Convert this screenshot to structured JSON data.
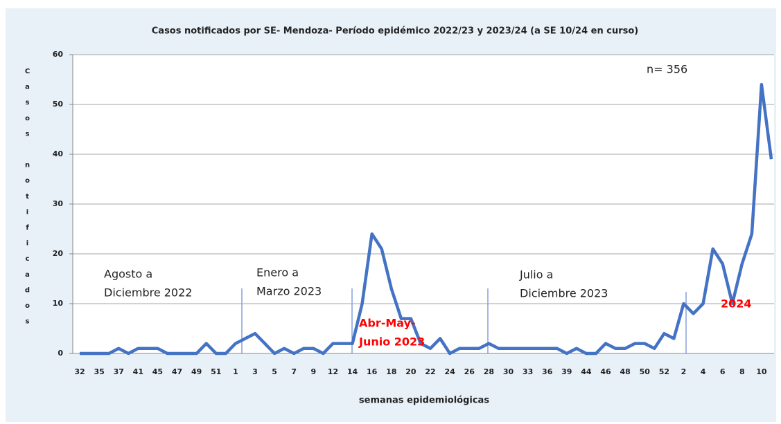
{
  "chart_data": {
    "type": "line",
    "title": "Casos notificados  por SE- Mendoza- Período epidémico 2022/23 y 2023/24 (a SE 10/24 en curso)",
    "ylabel": "Casos notificados",
    "xlabel": "semanas epidemiológicas",
    "categories": [
      "32",
      null,
      "35",
      null,
      "37",
      null,
      "41",
      null,
      "45",
      null,
      "47",
      null,
      "49",
      null,
      "51",
      null,
      "1",
      null,
      "3",
      null,
      "5",
      null,
      "7",
      null,
      "9",
      null,
      "12",
      null,
      "14",
      null,
      "16",
      null,
      "18",
      null,
      "20",
      null,
      "22",
      null,
      "24",
      null,
      "26",
      null,
      "28",
      null,
      "30",
      null,
      "33",
      null,
      "36",
      null,
      "39",
      null,
      "44",
      null,
      "46",
      null,
      "48",
      null,
      "50",
      null,
      "52",
      null,
      "2",
      null,
      "4",
      null,
      "6",
      null,
      "8",
      null,
      "10",
      null
    ],
    "values": [
      0,
      0,
      0,
      0,
      1,
      0,
      1,
      1,
      1,
      0,
      0,
      0,
      0,
      2,
      0,
      0,
      2,
      3,
      4,
      2,
      0,
      1,
      0,
      1,
      1,
      0,
      2,
      2,
      2,
      10,
      24,
      21,
      13,
      7,
      7,
      2,
      1,
      3,
      0,
      1,
      1,
      1,
      2,
      1,
      1,
      1,
      1,
      1,
      1,
      1,
      0,
      1,
      0,
      0,
      2,
      1,
      1,
      2,
      2,
      1,
      4,
      3,
      10,
      8,
      10,
      21,
      18,
      10,
      18,
      24,
      54,
      39
    ],
    "color": "#4472c4",
    "ylim": [
      0,
      60
    ],
    "yticks": [
      0,
      10,
      20,
      30,
      40,
      50,
      60
    ],
    "grid": true,
    "annotations": [
      {
        "lines": [
          "Agosto a",
          "Diciembre 2022"
        ],
        "color": "#222222"
      },
      {
        "lines": [
          "Enero a",
          "Marzo 2023"
        ],
        "color": "#222222"
      },
      {
        "lines": [
          "Abr-May-",
          "Junio 2023"
        ],
        "color": "#ff0000"
      },
      {
        "lines": [
          "Julio a",
          "Diciembre 2023"
        ],
        "color": "#222222"
      },
      {
        "lines": [
          "2024"
        ],
        "color": "#ff0000"
      },
      {
        "lines": [
          "n= 356"
        ],
        "color": "#222222"
      }
    ]
  }
}
